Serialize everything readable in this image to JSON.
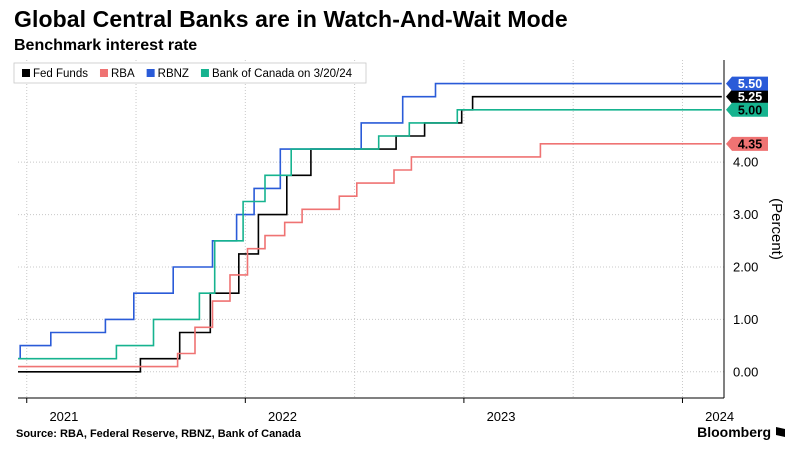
{
  "header": {
    "title": "Global Central Banks are in Watch-And-Wait Mode",
    "subtitle": "Benchmark interest rate"
  },
  "footer": {
    "source": "Source: RBA, Federal Reserve, RBNZ, Bank of Canada",
    "brand": "Bloomberg"
  },
  "chart_data": {
    "type": "line",
    "step": true,
    "title": "Global Central Banks are in Watch-And-Wait Mode",
    "subtitle": "Benchmark interest rate",
    "ylabel": "(Percent)",
    "xlim": [
      2020.96,
      2024.19
    ],
    "ylim": [
      -0.5,
      5.95
    ],
    "y_ticks": [
      0,
      1,
      2,
      3,
      4
    ],
    "y_tick_labels": [
      "0.00",
      "1.00",
      "2.00",
      "3.00",
      "4.00"
    ],
    "x_ticks": [
      2021,
      2022,
      2023,
      2024
    ],
    "x_tick_labels": [
      "2021",
      "2022",
      "2023",
      "2024"
    ],
    "grid": true,
    "legend": "top-left",
    "series": [
      {
        "name": "Fed Funds",
        "color": "#000000",
        "end_label": "5.25",
        "points": [
          [
            2020.96,
            0.0
          ],
          [
            2021.52,
            0.0
          ],
          [
            2021.52,
            0.25
          ],
          [
            2021.7,
            0.25
          ],
          [
            2021.7,
            0.75
          ],
          [
            2021.84,
            0.75
          ],
          [
            2021.84,
            1.5
          ],
          [
            2021.97,
            1.5
          ],
          [
            2021.97,
            2.25
          ],
          [
            2022.06,
            2.25
          ],
          [
            2022.06,
            3.0
          ],
          [
            2022.19,
            3.0
          ],
          [
            2022.19,
            3.75
          ],
          [
            2022.3,
            3.75
          ],
          [
            2022.3,
            4.25
          ],
          [
            2022.69,
            4.25
          ],
          [
            2022.69,
            4.5
          ],
          [
            2022.82,
            4.5
          ],
          [
            2022.82,
            4.75
          ],
          [
            2022.99,
            4.75
          ],
          [
            2022.99,
            5.0
          ],
          [
            2023.04,
            5.0
          ],
          [
            2023.04,
            5.25
          ],
          [
            2024.18,
            5.25
          ]
        ]
      },
      {
        "name": "RBA",
        "color": "#ef7373",
        "end_label": "4.35",
        "points": [
          [
            2020.96,
            0.1
          ],
          [
            2021.69,
            0.1
          ],
          [
            2021.69,
            0.35
          ],
          [
            2021.77,
            0.35
          ],
          [
            2021.77,
            0.85
          ],
          [
            2021.85,
            0.85
          ],
          [
            2021.85,
            1.35
          ],
          [
            2021.93,
            1.35
          ],
          [
            2021.93,
            1.85
          ],
          [
            2022.01,
            1.85
          ],
          [
            2022.01,
            2.35
          ],
          [
            2022.09,
            2.35
          ],
          [
            2022.09,
            2.6
          ],
          [
            2022.18,
            2.6
          ],
          [
            2022.18,
            2.85
          ],
          [
            2022.26,
            2.85
          ],
          [
            2022.26,
            3.1
          ],
          [
            2022.43,
            3.1
          ],
          [
            2022.43,
            3.35
          ],
          [
            2022.51,
            3.35
          ],
          [
            2022.51,
            3.6
          ],
          [
            2022.68,
            3.6
          ],
          [
            2022.68,
            3.85
          ],
          [
            2022.76,
            3.85
          ],
          [
            2022.76,
            4.1
          ],
          [
            2023.35,
            4.1
          ],
          [
            2023.35,
            4.35
          ],
          [
            2024.18,
            4.35
          ]
        ]
      },
      {
        "name": "RBNZ",
        "color": "#2a5bd8",
        "end_label": "5.50",
        "points": [
          [
            2020.96,
            0.25
          ],
          [
            2020.97,
            0.25
          ],
          [
            2020.97,
            0.5
          ],
          [
            2021.11,
            0.5
          ],
          [
            2021.11,
            0.75
          ],
          [
            2021.36,
            0.75
          ],
          [
            2021.36,
            1.0
          ],
          [
            2021.49,
            1.0
          ],
          [
            2021.49,
            1.5
          ],
          [
            2021.67,
            1.5
          ],
          [
            2021.67,
            2.0
          ],
          [
            2021.85,
            2.0
          ],
          [
            2021.85,
            2.5
          ],
          [
            2021.96,
            2.5
          ],
          [
            2021.96,
            3.0
          ],
          [
            2022.04,
            3.0
          ],
          [
            2022.04,
            3.5
          ],
          [
            2022.16,
            3.5
          ],
          [
            2022.16,
            4.25
          ],
          [
            2022.53,
            4.25
          ],
          [
            2022.53,
            4.75
          ],
          [
            2022.72,
            4.75
          ],
          [
            2022.72,
            5.25
          ],
          [
            2022.87,
            5.25
          ],
          [
            2022.87,
            5.5
          ],
          [
            2024.18,
            5.5
          ]
        ]
      },
      {
        "name": "Bank of Canada on 3/20/24",
        "color": "#16b38f",
        "end_label": "5.00",
        "points": [
          [
            2020.96,
            0.25
          ],
          [
            2021.41,
            0.25
          ],
          [
            2021.41,
            0.5
          ],
          [
            2021.58,
            0.5
          ],
          [
            2021.58,
            1.0
          ],
          [
            2021.79,
            1.0
          ],
          [
            2021.79,
            1.5
          ],
          [
            2021.86,
            1.5
          ],
          [
            2021.86,
            2.5
          ],
          [
            2021.99,
            2.5
          ],
          [
            2021.99,
            3.25
          ],
          [
            2022.09,
            3.25
          ],
          [
            2022.09,
            3.75
          ],
          [
            2022.21,
            3.75
          ],
          [
            2022.21,
            4.25
          ],
          [
            2022.61,
            4.25
          ],
          [
            2022.61,
            4.5
          ],
          [
            2022.75,
            4.5
          ],
          [
            2022.75,
            4.75
          ],
          [
            2022.97,
            4.75
          ],
          [
            2022.97,
            5.0
          ],
          [
            2024.18,
            5.0
          ]
        ]
      }
    ]
  }
}
